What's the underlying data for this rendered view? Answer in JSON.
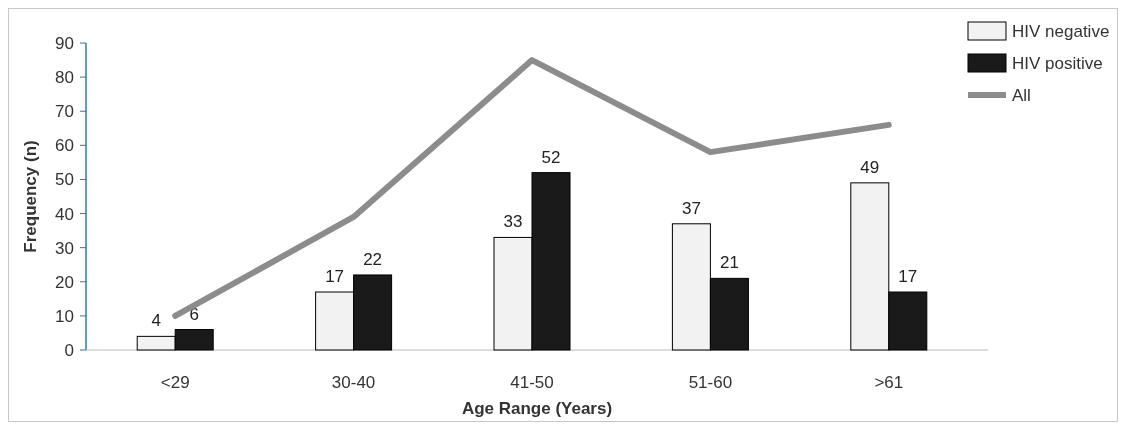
{
  "chart_data": {
    "type": "bar",
    "xlabel": "Age Range (Years)",
    "ylabel": "Frequency (n)",
    "categories": [
      "<29",
      "30-40",
      "41-50",
      "51-60",
      ">61"
    ],
    "series": [
      {
        "name": "HIV negative",
        "color": "#f2f2f2",
        "values": [
          4,
          17,
          33,
          37,
          49
        ],
        "value_labels": [
          "4",
          "17",
          "33",
          "37",
          "49"
        ]
      },
      {
        "name": "HIV positive",
        "color": "#1a1a1a",
        "values": [
          6,
          22,
          52,
          21,
          17
        ],
        "value_labels": [
          "6",
          "22",
          "52",
          "21",
          "17"
        ]
      },
      {
        "name": "All",
        "type": "line",
        "color": "#8c8c8c",
        "values": [
          10,
          39,
          85,
          58,
          66
        ]
      }
    ],
    "ylim": [
      0,
      90
    ],
    "yticks": [
      0,
      10,
      20,
      30,
      40,
      50,
      60,
      70,
      80,
      90
    ],
    "grid": false,
    "legend": "top right",
    "line_style": "solid"
  }
}
